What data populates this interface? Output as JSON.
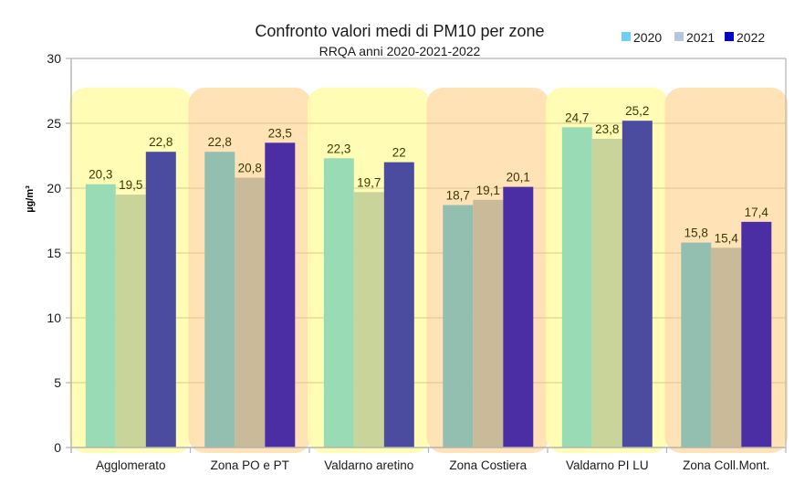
{
  "chart_data": {
    "type": "bar",
    "title": "Confronto valori medi di PM10 per zone",
    "subtitle": "RRQA anni 2020-2021-2022",
    "xlabel": "",
    "ylabel": "µg/m³",
    "ylim": [
      0,
      30
    ],
    "yticks": [
      0,
      5,
      10,
      15,
      20,
      25,
      30
    ],
    "grid": true,
    "legend_position": "top-right",
    "categories": [
      "Agglomerato",
      "Zona PO e PT",
      "Valdarno aretino",
      "Zona Costiera",
      "Valdarno PI LU",
      "Zona Coll.Mont."
    ],
    "category_backgrounds": [
      "yellow",
      "orange",
      "yellow",
      "orange",
      "yellow",
      "orange"
    ],
    "series": [
      {
        "name": "2020",
        "legend_color": "#6ecff6",
        "values": [
          20.3,
          22.8,
          22.3,
          18.7,
          24.7,
          15.8
        ],
        "labels": [
          "20,3",
          "22,8",
          "22,3",
          "18,7",
          "24,7",
          "15,8"
        ]
      },
      {
        "name": "2021",
        "legend_color": "#b4c7dc",
        "values": [
          19.5,
          20.8,
          19.7,
          19.1,
          23.8,
          15.4
        ],
        "labels": [
          "19,5",
          "20,8",
          "19,7",
          "19,1",
          "23,8",
          "15,4"
        ]
      },
      {
        "name": "2022",
        "legend_color": "#0000cc",
        "values": [
          22.8,
          23.5,
          22.0,
          20.1,
          25.2,
          17.4
        ],
        "labels": [
          "22,8",
          "23,5",
          "22",
          "20,1",
          "25,2",
          "17,4"
        ]
      }
    ],
    "colors": {
      "bg_yellow": "#fffcb0",
      "bg_orange": "#ffdfb0",
      "bar_on_yellow": [
        "#98dbb4",
        "#c8d49a",
        "#4b4ca0"
      ],
      "bar_on_orange": [
        "#93bfb0",
        "#c9bb9a",
        "#4b2ea4"
      ],
      "grid": "#d9c98f",
      "axis": "#b3b3b3"
    }
  }
}
